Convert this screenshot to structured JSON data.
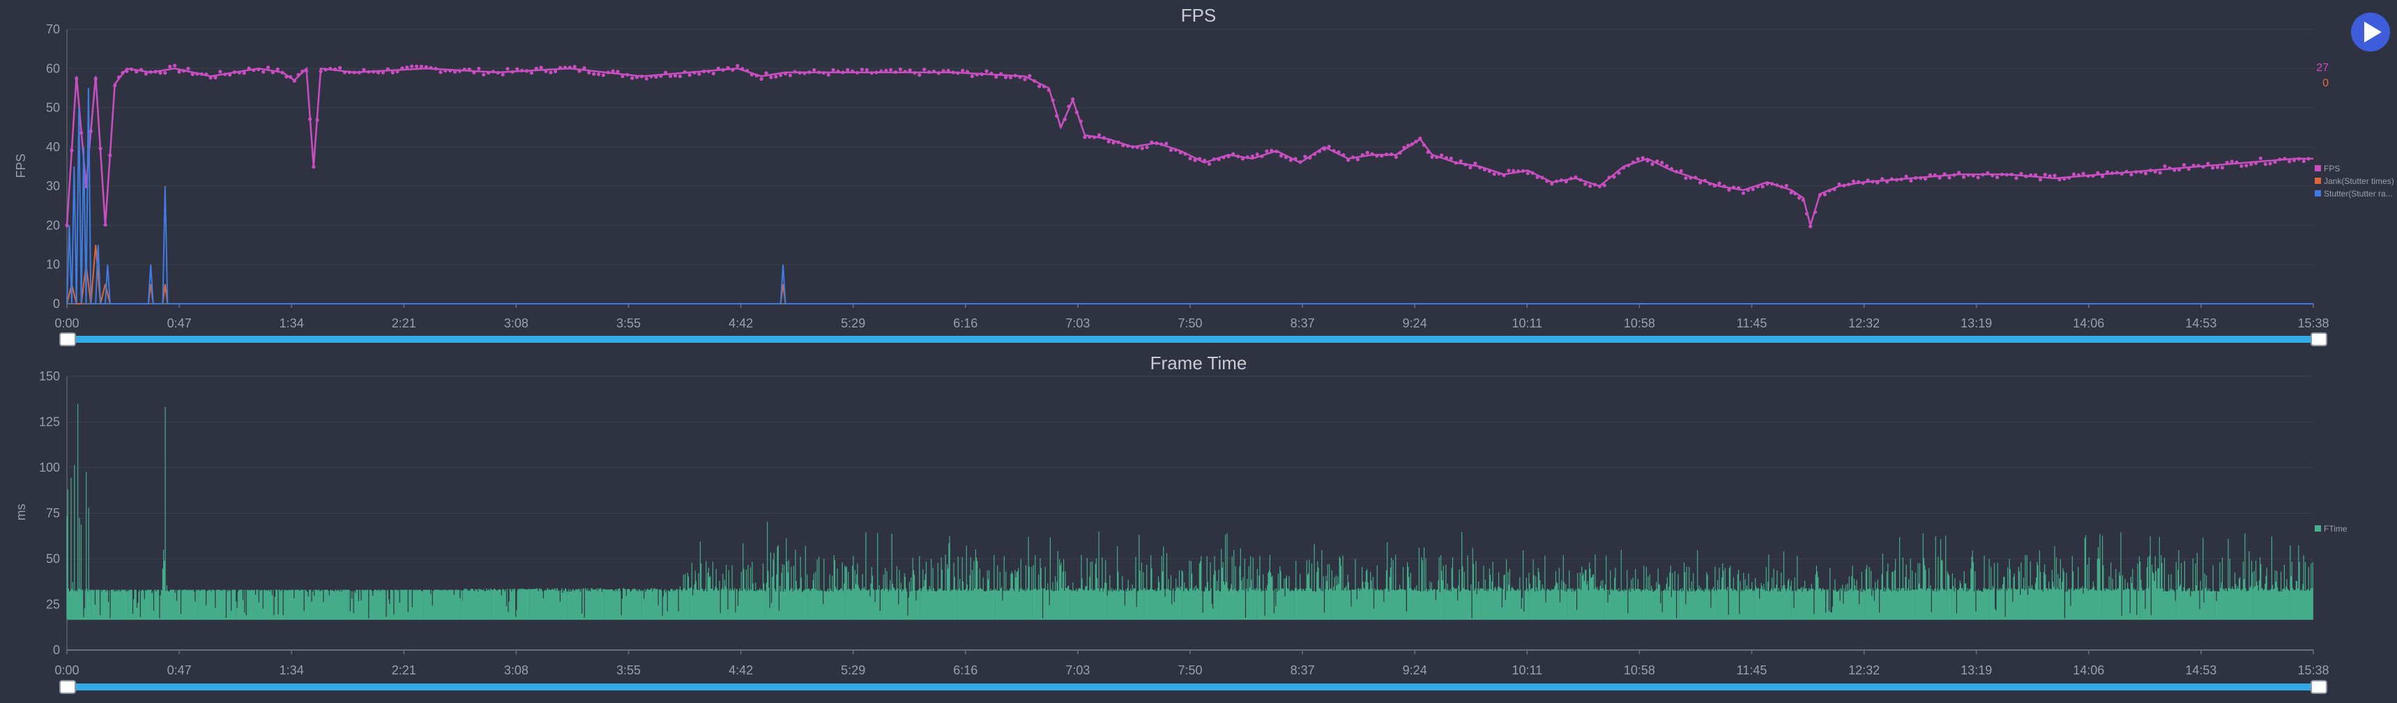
{
  "controls": {
    "play_icon": "play-icon",
    "accent": "#3d5ddb"
  },
  "legend_values": {
    "fps": "27",
    "jank": "0"
  },
  "colors": {
    "fps": "#c94fc1",
    "jank": "#e0673a",
    "stutter": "#3f7be0",
    "ftime": "#47b38d",
    "slider": "#33a9e6",
    "axis_text": "#9aa0ab",
    "title": "#c9ccd3"
  },
  "chart_data": [
    {
      "type": "line",
      "title": "FPS",
      "ylabel": "FPS",
      "xlabel": "",
      "ylim": [
        0,
        70
      ],
      "yticks": [
        "0",
        "10",
        "20",
        "30",
        "40",
        "50",
        "60",
        "70"
      ],
      "xticks": [
        "0:00",
        "0:47",
        "1:34",
        "2:21",
        "3:08",
        "3:55",
        "4:42",
        "5:29",
        "6:16",
        "7:03",
        "7:50",
        "8:37",
        "9:24",
        "10:11",
        "10:58",
        "11:45",
        "12:32",
        "13:19",
        "14:06",
        "14:53",
        "15:38"
      ],
      "xlim_seconds": [
        0,
        938
      ],
      "legend": [
        "FPS",
        "Jank(Stutter times)",
        "Stutter(Stutter ra..."
      ],
      "legend_position": "right",
      "series": [
        {
          "name": "FPS",
          "style": "line-markers",
          "points": [
            [
              0,
              20
            ],
            [
              4,
              58
            ],
            [
              8,
              30
            ],
            [
              12,
              58
            ],
            [
              16,
              20
            ],
            [
              20,
              56
            ],
            [
              25,
              60
            ],
            [
              35,
              59
            ],
            [
              45,
              60
            ],
            [
              60,
              58
            ],
            [
              80,
              60
            ],
            [
              90,
              59
            ],
            [
              95,
              57
            ],
            [
              100,
              60
            ],
            [
              103,
              35
            ],
            [
              106,
              60
            ],
            [
              120,
              59
            ],
            [
              150,
              60
            ],
            [
              180,
              59
            ],
            [
              210,
              60
            ],
            [
              240,
              58
            ],
            [
              260,
              59
            ],
            [
              280,
              60
            ],
            [
              290,
              58
            ],
            [
              300,
              59
            ],
            [
              330,
              59
            ],
            [
              370,
              59
            ],
            [
              400,
              58
            ],
            [
              410,
              55
            ],
            [
              415,
              45
            ],
            [
              420,
              52
            ],
            [
              425,
              43
            ],
            [
              435,
              42
            ],
            [
              445,
              40
            ],
            [
              455,
              41
            ],
            [
              465,
              39
            ],
            [
              475,
              36
            ],
            [
              485,
              38
            ],
            [
              495,
              37
            ],
            [
              505,
              39
            ],
            [
              515,
              36
            ],
            [
              525,
              40
            ],
            [
              535,
              37
            ],
            [
              545,
              38
            ],
            [
              555,
              38
            ],
            [
              560,
              40
            ],
            [
              565,
              42
            ],
            [
              570,
              38
            ],
            [
              580,
              36
            ],
            [
              590,
              35
            ],
            [
              600,
              33
            ],
            [
              610,
              34
            ],
            [
              620,
              31
            ],
            [
              630,
              32
            ],
            [
              640,
              30
            ],
            [
              650,
              35
            ],
            [
              660,
              37
            ],
            [
              670,
              34
            ],
            [
              680,
              32
            ],
            [
              690,
              30
            ],
            [
              700,
              29
            ],
            [
              710,
              31
            ],
            [
              720,
              29
            ],
            [
              725,
              27
            ],
            [
              728,
              20
            ],
            [
              732,
              28
            ],
            [
              740,
              30
            ],
            [
              750,
              31
            ],
            [
              770,
              32
            ],
            [
              790,
              33
            ],
            [
              810,
              33
            ],
            [
              830,
              32
            ],
            [
              850,
              33
            ],
            [
              870,
              34
            ],
            [
              890,
              35
            ],
            [
              910,
              36
            ],
            [
              930,
              37
            ],
            [
              938,
              37
            ]
          ]
        },
        {
          "name": "Jank(Stutter times)",
          "style": "line",
          "points": [
            [
              0,
              0
            ],
            [
              2,
              5
            ],
            [
              4,
              0
            ],
            [
              6,
              0
            ],
            [
              8,
              10
            ],
            [
              10,
              0
            ],
            [
              12,
              15
            ],
            [
              14,
              0
            ],
            [
              16,
              5
            ],
            [
              18,
              0
            ],
            [
              34,
              0
            ],
            [
              35,
              5
            ],
            [
              36,
              0
            ],
            [
              40,
              0
            ],
            [
              41,
              5
            ],
            [
              42,
              0
            ],
            [
              298,
              0
            ],
            [
              299,
              5
            ],
            [
              300,
              0
            ],
            [
              938,
              0
            ]
          ]
        },
        {
          "name": "Stutter(Stutter ra...",
          "style": "line",
          "points": [
            [
              0,
              0
            ],
            [
              1,
              20
            ],
            [
              2,
              0
            ],
            [
              3,
              35
            ],
            [
              4,
              0
            ],
            [
              5,
              50
            ],
            [
              6,
              0
            ],
            [
              7,
              40
            ],
            [
              8,
              0
            ],
            [
              9,
              55
            ],
            [
              10,
              0
            ],
            [
              12,
              0
            ],
            [
              13,
              15
            ],
            [
              14,
              0
            ],
            [
              16,
              0
            ],
            [
              17,
              10
            ],
            [
              18,
              0
            ],
            [
              34,
              0
            ],
            [
              35,
              10
            ],
            [
              36,
              0
            ],
            [
              40,
              0
            ],
            [
              41,
              30
            ],
            [
              42,
              0
            ],
            [
              298,
              0
            ],
            [
              299,
              10
            ],
            [
              300,
              0
            ],
            [
              938,
              0
            ]
          ]
        }
      ]
    },
    {
      "type": "line",
      "title": "Frame Time",
      "ylabel": "ms",
      "xlabel": "",
      "ylim": [
        0,
        150
      ],
      "yticks": [
        "0",
        "25",
        "50",
        "75",
        "100",
        "125",
        "150"
      ],
      "xticks": [
        "0:00",
        "0:47",
        "1:34",
        "2:21",
        "3:08",
        "3:55",
        "4:42",
        "5:29",
        "6:16",
        "7:03",
        "7:50",
        "8:37",
        "9:24",
        "10:11",
        "10:58",
        "11:45",
        "12:32",
        "13:19",
        "14:06",
        "14:53",
        "15:38"
      ],
      "xlim_seconds": [
        0,
        938
      ],
      "legend": [
        "FTime"
      ],
      "legend_position": "right",
      "series": [
        {
          "name": "FTime",
          "style": "dense-line",
          "baseline_ms": 17,
          "segments": [
            {
              "from": 0,
              "to": 10,
              "low": 17,
              "high": 150
            },
            {
              "from": 10,
              "to": 40,
              "low": 17,
              "high": 33
            },
            {
              "from": 40,
              "to": 42,
              "low": 17,
              "high": 135
            },
            {
              "from": 42,
              "to": 165,
              "low": 17,
              "high": 33
            },
            {
              "from": 165,
              "to": 255,
              "low": 17,
              "high": 34
            },
            {
              "from": 255,
              "to": 290,
              "low": 17,
              "high": 60
            },
            {
              "from": 290,
              "to": 300,
              "low": 17,
              "high": 75
            },
            {
              "from": 300,
              "to": 600,
              "low": 17,
              "high": 65
            },
            {
              "from": 600,
              "to": 760,
              "low": 17,
              "high": 55
            },
            {
              "from": 760,
              "to": 938,
              "low": 17,
              "high": 65
            }
          ]
        }
      ]
    }
  ]
}
